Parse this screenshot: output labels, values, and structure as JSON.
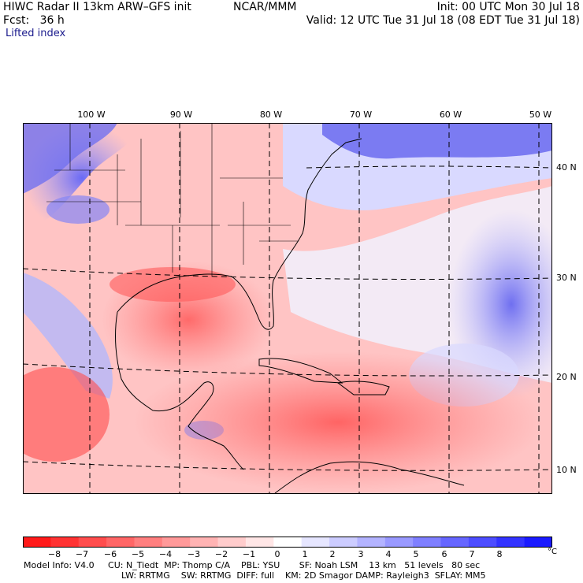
{
  "header": {
    "title": "HIWC Radar II 13km ARW–GFS init",
    "source": "NCAR/MMM",
    "init": "Init: 00 UTC Mon 30 Jul 18",
    "fcst": "Fcst:   36 h",
    "valid": "Valid: 12 UTC Tue 31 Jul 18 (08 EDT Tue 31 Jul 18)",
    "field": "Lifted index"
  },
  "map": {
    "longitude_labels": [
      "100 W",
      "90 W",
      "80 W",
      "70 W",
      "60 W",
      "50 W"
    ],
    "latitude_labels": [
      "40 N",
      "30 N",
      "20 N",
      "10 N"
    ]
  },
  "colorbar": {
    "labels": [
      "−8",
      "−7",
      "−6",
      "−5",
      "−4",
      "−3",
      "−2",
      "−1",
      "0",
      "1",
      "2",
      "3",
      "4",
      "5",
      "6",
      "7",
      "8"
    ],
    "unit": "°C",
    "colors": [
      "#ff1a1a",
      "#ff3333",
      "#ff4d4d",
      "#ff6666",
      "#ff7f7f",
      "#ff9999",
      "#ffb3b3",
      "#ffcccc",
      "#ffe6e6",
      "#ffffff",
      "#e6e6ff",
      "#ccccff",
      "#b3b3ff",
      "#9999ff",
      "#7f7fff",
      "#6666ff",
      "#4d4dff",
      "#3333ff",
      "#1a1aff"
    ]
  },
  "footer": {
    "line1": "Model Info: V4.0     CU: N_Tiedt  MP: Thomp C/A    PBL: YSU       SF: Noah LSM    13 km   51 levels   80 sec",
    "line2": "LW: RRTMG    SW: RRTMG  DIFF: full    KM: 2D Smagor DAMP: Rayleigh3  SFLAY: MM5"
  }
}
